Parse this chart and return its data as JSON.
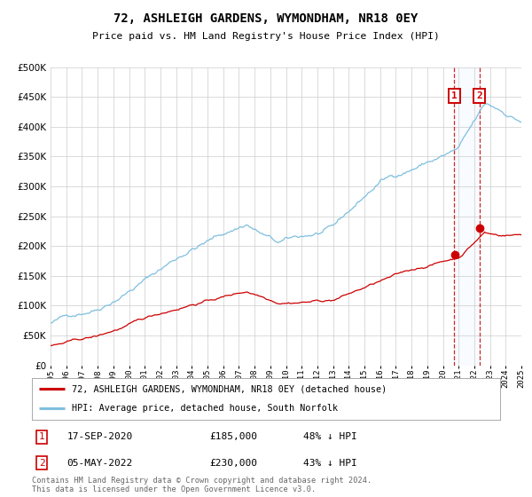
{
  "title": "72, ASHLEIGH GARDENS, WYMONDHAM, NR18 0EY",
  "subtitle": "Price paid vs. HM Land Registry's House Price Index (HPI)",
  "legend_line1": "72, ASHLEIGH GARDENS, WYMONDHAM, NR18 0EY (detached house)",
  "legend_line2": "HPI: Average price, detached house, South Norfolk",
  "annotation1_date": "17-SEP-2020",
  "annotation1_price": "£185,000",
  "annotation1_pct": "48% ↓ HPI",
  "annotation2_date": "05-MAY-2022",
  "annotation2_price": "£230,000",
  "annotation2_pct": "43% ↓ HPI",
  "footnote1": "Contains HM Land Registry data © Crown copyright and database right 2024.",
  "footnote2": "This data is licensed under the Open Government Licence v3.0.",
  "hpi_color": "#7fbfdf",
  "price_color": "#cc0000",
  "bg_color": "#ffffff",
  "grid_color": "#cccccc",
  "shade_color": "#ddeeff",
  "box_edge_color": "#cc0000",
  "x_start_year": 1995,
  "x_end_year": 2025,
  "ylim": [
    0,
    500000
  ],
  "yticks": [
    0,
    50000,
    100000,
    150000,
    200000,
    250000,
    300000,
    350000,
    400000,
    450000,
    500000
  ],
  "sale1_year": 2020.71,
  "sale1_price": 185000,
  "sale2_year": 2022.34,
  "sale2_price": 230000
}
